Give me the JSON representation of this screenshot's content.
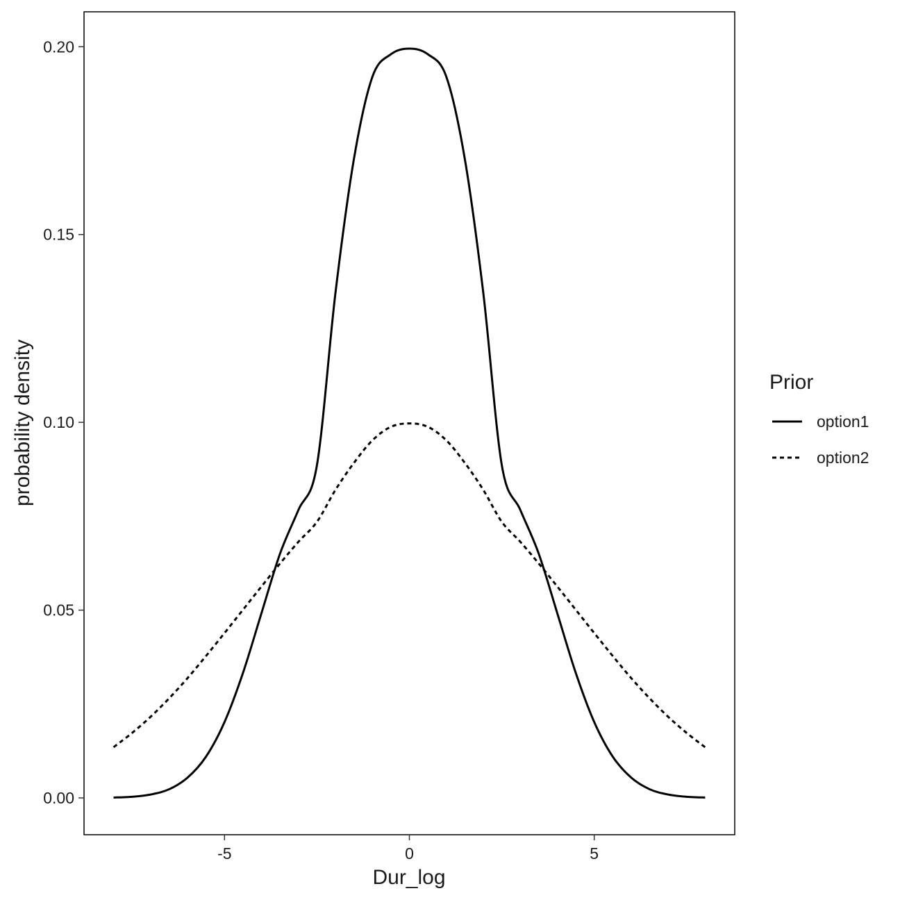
{
  "chart_data": {
    "type": "line",
    "title": "",
    "xlabel": "Dur_log",
    "ylabel": "probability density",
    "xlim": [
      -8.8,
      8.8
    ],
    "ylim": [
      -0.0098,
      0.2093
    ],
    "x_ticks": [
      -5,
      0,
      5
    ],
    "x_tick_labels": [
      "-5",
      "0",
      "5"
    ],
    "y_ticks": [
      0.0,
      0.05,
      0.1,
      0.15,
      0.2
    ],
    "y_tick_labels": [
      "0.00",
      "0.05",
      "0.10",
      "0.15",
      "0.20"
    ],
    "grid": false,
    "legend": {
      "title": "Prior",
      "position": "right",
      "entries": [
        {
          "label": "option1",
          "linestyle": "solid"
        },
        {
          "label": "option2",
          "linestyle": "dashed"
        }
      ]
    },
    "series": [
      {
        "name": "option1",
        "linestyle": "solid",
        "color": "#000000",
        "x": [
          -8,
          -7.5,
          -7,
          -6.5,
          -6,
          -5.5,
          -5,
          -4.5,
          -4,
          -3.5,
          -3,
          -2.5,
          -2,
          -1.5,
          -1,
          -0.5,
          0,
          0.5,
          1,
          1.5,
          2,
          2.5,
          3,
          3.5,
          4,
          4.5,
          5,
          5.5,
          6,
          6.5,
          7,
          7.5,
          8
        ],
        "y": [
          0.0001,
          0.0003,
          0.0009,
          0.0023,
          0.0054,
          0.011,
          0.0202,
          0.0333,
          0.0492,
          0.065,
          0.0767,
          0.0886,
          0.1344,
          0.1701,
          0.192,
          0.198,
          0.1995,
          0.198,
          0.192,
          0.1701,
          0.1344,
          0.0886,
          0.0767,
          0.065,
          0.0492,
          0.0333,
          0.0202,
          0.011,
          0.0054,
          0.0023,
          0.0009,
          0.0003,
          0.0001
        ]
      },
      {
        "name": "option2",
        "linestyle": "dashed",
        "color": "#000000",
        "x": [
          -8,
          -7.5,
          -7,
          -6.5,
          -6,
          -5.5,
          -5,
          -4.5,
          -4,
          -3.5,
          -3,
          -2.5,
          -2,
          -1.5,
          -1,
          -0.5,
          0,
          0.5,
          1,
          1.5,
          2,
          2.5,
          3,
          3.5,
          4,
          4.5,
          5,
          5.5,
          6,
          6.5,
          7,
          7.5,
          8
        ],
        "y": [
          0.0135,
          0.0173,
          0.0216,
          0.0265,
          0.0319,
          0.0378,
          0.0439,
          0.0501,
          0.0563,
          0.0624,
          0.0682,
          0.0735,
          0.082,
          0.0892,
          0.0952,
          0.0988,
          0.0997,
          0.0988,
          0.0952,
          0.0892,
          0.082,
          0.0735,
          0.0682,
          0.0624,
          0.0563,
          0.0501,
          0.0439,
          0.0378,
          0.0319,
          0.0265,
          0.0216,
          0.0173,
          0.0135
        ]
      }
    ]
  }
}
